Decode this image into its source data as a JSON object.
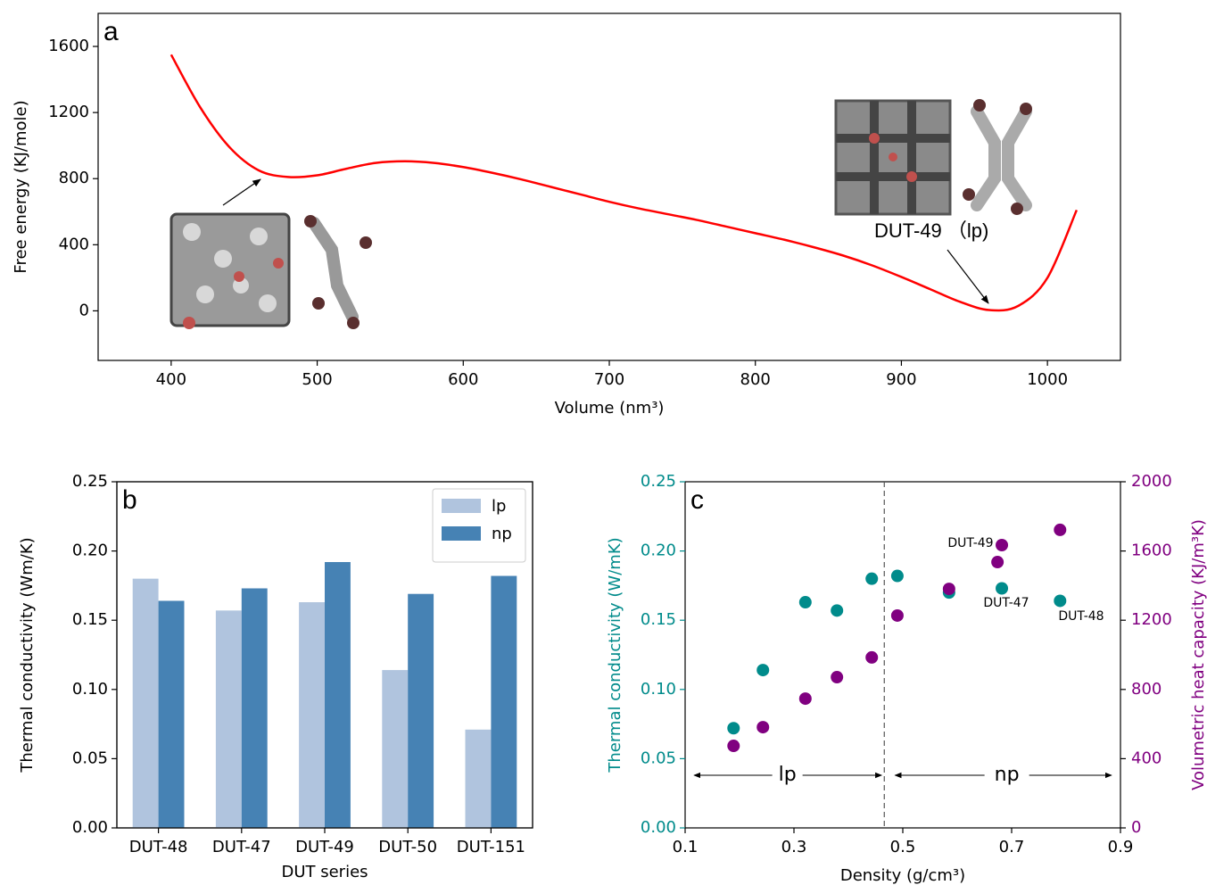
{
  "chart_data": [
    {
      "type": "line",
      "label": "a",
      "xlabel": "Volume (nm³)",
      "ylabel": "Free energy (KJ/mole)",
      "color": "#ff0000",
      "x": [
        400,
        420,
        440,
        460,
        480,
        500,
        520,
        540,
        560,
        580,
        600,
        620,
        640,
        660,
        680,
        700,
        720,
        740,
        760,
        780,
        800,
        820,
        840,
        860,
        880,
        900,
        920,
        940,
        960,
        980,
        1000,
        1020
      ],
      "values": [
        1550,
        1230,
        990,
        850,
        810,
        820,
        860,
        895,
        905,
        895,
        870,
        835,
        795,
        750,
        705,
        660,
        620,
        585,
        550,
        510,
        470,
        430,
        385,
        335,
        275,
        205,
        130,
        55,
        5,
        30,
        200,
        610
      ],
      "xlim": [
        350,
        1050
      ],
      "xticks": [
        400,
        500,
        600,
        700,
        800,
        900,
        1000
      ],
      "ylim": [
        -300,
        1800
      ],
      "yticks": [
        0,
        400,
        800,
        1200,
        1600
      ],
      "annotations": [
        "DUT-49 （lp)"
      ]
    },
    {
      "type": "bar",
      "label": "b",
      "xlabel": "DUT series",
      "ylabel": "Thermal conductivity (Wm/K)",
      "categories": [
        "DUT-48",
        "DUT-47",
        "DUT-49",
        "DUT-50",
        "DUT-151"
      ],
      "series": [
        {
          "name": "lp",
          "color": "#b0c4de",
          "values": [
            0.18,
            0.157,
            0.163,
            0.114,
            0.071
          ]
        },
        {
          "name": "np",
          "color": "#4682b4",
          "values": [
            0.164,
            0.173,
            0.192,
            0.169,
            0.182
          ]
        }
      ],
      "ylim": [
        0,
        0.25
      ],
      "yticks": [
        {
          "value": 0,
          "label": "0.00"
        },
        {
          "value": 0.05,
          "label": "0.05"
        },
        {
          "value": 0.1,
          "label": "0.10"
        },
        {
          "value": 0.15,
          "label": "0.15"
        },
        {
          "value": 0.2,
          "label": "0.20"
        },
        {
          "value": 0.25,
          "label": "0.25"
        }
      ],
      "legend": "upper right"
    },
    {
      "type": "scatter",
      "label": "c",
      "xlabel": "Density (g/cm³)",
      "ylabel": "Thermal conductivity (W/mK)",
      "y2label": "Volumetric heat capacity (KJ/m³K)",
      "series": [
        {
          "color": "#008b8b",
          "x": [
            0.189,
            0.243,
            0.321,
            0.379,
            0.443,
            0.49,
            0.585,
            0.682,
            0.789
          ],
          "values": [
            0.072,
            0.114,
            0.163,
            0.157,
            0.18,
            0.182,
            0.17,
            0.173,
            0.164
          ]
        },
        {
          "color": "#800080",
          "axis": "y2",
          "x": [
            0.189,
            0.243,
            0.321,
            0.379,
            0.443,
            0.49,
            0.585,
            0.674,
            0.682,
            0.789
          ],
          "values": [
            474,
            582,
            747,
            871,
            985,
            1227,
            1381,
            1536,
            1634,
            1722
          ]
        }
      ],
      "xlim": [
        0.1,
        0.9
      ],
      "xticks": [
        0.1,
        0.3,
        0.5,
        0.7,
        0.9
      ],
      "ylim": [
        0,
        0.25
      ],
      "yticks": [
        {
          "value": 0,
          "label": "0.00"
        },
        {
          "value": 0.05,
          "label": "0.05"
        },
        {
          "value": 0.1,
          "label": "0.10"
        },
        {
          "value": 0.15,
          "label": "0.15"
        },
        {
          "value": 0.2,
          "label": "0.20"
        },
        {
          "value": 0.25,
          "label": "0.25"
        }
      ],
      "y2lim": [
        0,
        2000
      ],
      "y2ticks": [
        0,
        400,
        800,
        1200,
        1600,
        2000
      ],
      "vline": 0.466,
      "annotations": [
        "DUT-49",
        "DUT-47",
        "DUT-48"
      ],
      "regions": [
        "lp",
        "np"
      ]
    }
  ]
}
